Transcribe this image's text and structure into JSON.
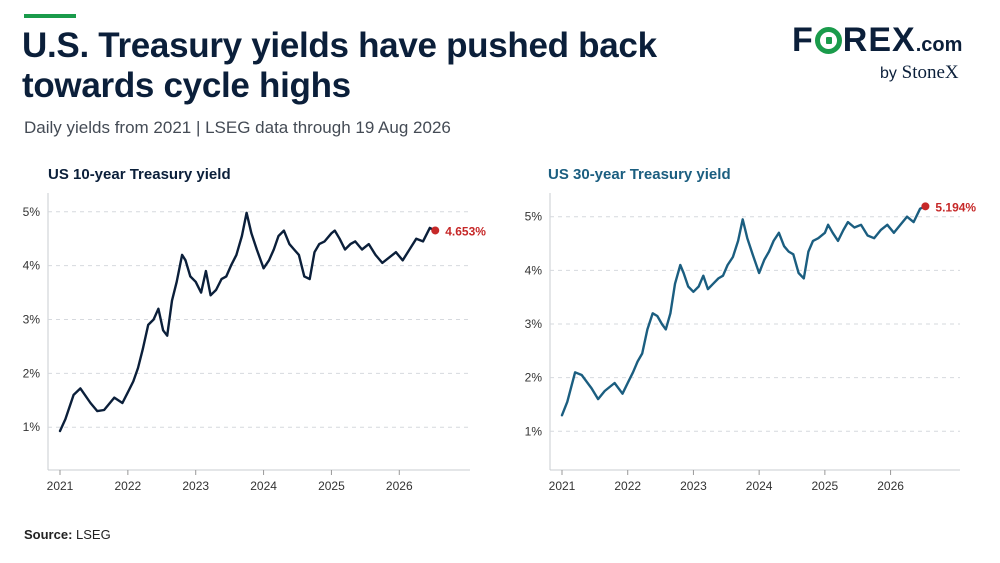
{
  "header": {
    "title": "U.S. Treasury yields have pushed back towards cycle highs",
    "subtitle": "Daily yields from 2021 | LSEG data through 19 Aug 2026"
  },
  "logo": {
    "word_pre": "F",
    "word_post": "REX",
    "dotcom": ".com",
    "by": "by",
    "brand": "StoneX"
  },
  "footer": {
    "source_label": "Source:",
    "source_value": "LSEG"
  },
  "colors": {
    "accent": "#1a9b4b",
    "ten_year": "#0b1f3a",
    "thirty_year": "#1b5e80",
    "marker": "#c62828"
  },
  "chart_data": [
    {
      "type": "line",
      "title": "US 10-year Treasury yield",
      "xlabel": "",
      "ylabel": "",
      "x_ticks": [
        "2021",
        "2022",
        "2023",
        "2024",
        "2025",
        "2026"
      ],
      "y_ticks": [
        "1%",
        "2%",
        "3%",
        "4%",
        "5%"
      ],
      "xlim": [
        2021.0,
        2026.6
      ],
      "ylim": [
        0.8,
        5.2
      ],
      "grid": true,
      "series": [
        {
          "color": "#0b1f3a",
          "x": [
            2021.0,
            2021.08,
            2021.2,
            2021.3,
            2021.45,
            2021.55,
            2021.65,
            2021.8,
            2021.92,
            2022.0,
            2022.08,
            2022.15,
            2022.22,
            2022.3,
            2022.38,
            2022.45,
            2022.52,
            2022.58,
            2022.65,
            2022.72,
            2022.8,
            2022.85,
            2022.92,
            2023.0,
            2023.08,
            2023.15,
            2023.22,
            2023.3,
            2023.38,
            2023.45,
            2023.52,
            2023.6,
            2023.68,
            2023.75,
            2023.82,
            2023.9,
            2024.0,
            2024.08,
            2024.15,
            2024.22,
            2024.3,
            2024.38,
            2024.45,
            2024.52,
            2024.6,
            2024.68,
            2024.75,
            2024.82,
            2024.9,
            2025.0,
            2025.05,
            2025.12,
            2025.2,
            2025.28,
            2025.35,
            2025.45,
            2025.55,
            2025.65,
            2025.75,
            2025.85,
            2025.95,
            2026.05,
            2026.15,
            2026.25,
            2026.35,
            2026.45,
            2026.53
          ],
          "y": [
            0.93,
            1.15,
            1.6,
            1.72,
            1.45,
            1.3,
            1.32,
            1.55,
            1.45,
            1.65,
            1.85,
            2.1,
            2.45,
            2.9,
            3.0,
            3.2,
            2.8,
            2.7,
            3.35,
            3.7,
            4.2,
            4.1,
            3.8,
            3.7,
            3.5,
            3.9,
            3.45,
            3.55,
            3.75,
            3.8,
            4.0,
            4.2,
            4.55,
            4.98,
            4.6,
            4.3,
            3.95,
            4.1,
            4.3,
            4.55,
            4.65,
            4.4,
            4.3,
            4.2,
            3.8,
            3.75,
            4.25,
            4.4,
            4.45,
            4.6,
            4.65,
            4.5,
            4.3,
            4.4,
            4.45,
            4.3,
            4.4,
            4.2,
            4.05,
            4.15,
            4.25,
            4.1,
            4.3,
            4.5,
            4.45,
            4.7,
            4.653
          ],
          "last_label": "4.653%"
        }
      ]
    },
    {
      "type": "line",
      "title": "US 30-year Treasury yield",
      "xlabel": "",
      "ylabel": "",
      "x_ticks": [
        "2021",
        "2022",
        "2023",
        "2024",
        "2025",
        "2026"
      ],
      "y_ticks": [
        "1%",
        "2%",
        "3%",
        "4%",
        "5%"
      ],
      "xlim": [
        2021.0,
        2026.6
      ],
      "ylim": [
        0.8,
        5.2
      ],
      "grid": true,
      "series": [
        {
          "color": "#1b5e80",
          "x": [
            2021.0,
            2021.08,
            2021.2,
            2021.3,
            2021.45,
            2021.55,
            2021.65,
            2021.8,
            2021.92,
            2022.0,
            2022.08,
            2022.15,
            2022.22,
            2022.3,
            2022.38,
            2022.45,
            2022.52,
            2022.58,
            2022.65,
            2022.72,
            2022.8,
            2022.85,
            2022.92,
            2023.0,
            2023.08,
            2023.15,
            2023.22,
            2023.3,
            2023.38,
            2023.45,
            2023.52,
            2023.6,
            2023.68,
            2023.75,
            2023.82,
            2023.9,
            2024.0,
            2024.08,
            2024.15,
            2024.22,
            2024.3,
            2024.38,
            2024.45,
            2024.52,
            2024.6,
            2024.68,
            2024.75,
            2024.82,
            2024.9,
            2025.0,
            2025.05,
            2025.12,
            2025.2,
            2025.28,
            2025.35,
            2025.45,
            2025.55,
            2025.65,
            2025.75,
            2025.85,
            2025.95,
            2026.05,
            2026.15,
            2026.25,
            2026.35,
            2026.45,
            2026.53
          ],
          "y": [
            1.3,
            1.55,
            2.1,
            2.05,
            1.8,
            1.6,
            1.75,
            1.9,
            1.7,
            1.9,
            2.1,
            2.3,
            2.45,
            2.9,
            3.2,
            3.15,
            3.0,
            2.9,
            3.2,
            3.75,
            4.1,
            3.95,
            3.7,
            3.6,
            3.7,
            3.9,
            3.65,
            3.75,
            3.85,
            3.9,
            4.1,
            4.25,
            4.55,
            4.95,
            4.6,
            4.3,
            3.95,
            4.2,
            4.35,
            4.55,
            4.7,
            4.45,
            4.35,
            4.3,
            3.95,
            3.85,
            4.35,
            4.55,
            4.6,
            4.7,
            4.85,
            4.7,
            4.55,
            4.75,
            4.9,
            4.8,
            4.85,
            4.65,
            4.6,
            4.75,
            4.85,
            4.7,
            4.85,
            5.0,
            4.9,
            5.15,
            5.194
          ],
          "last_label": "5.194%"
        }
      ]
    }
  ]
}
